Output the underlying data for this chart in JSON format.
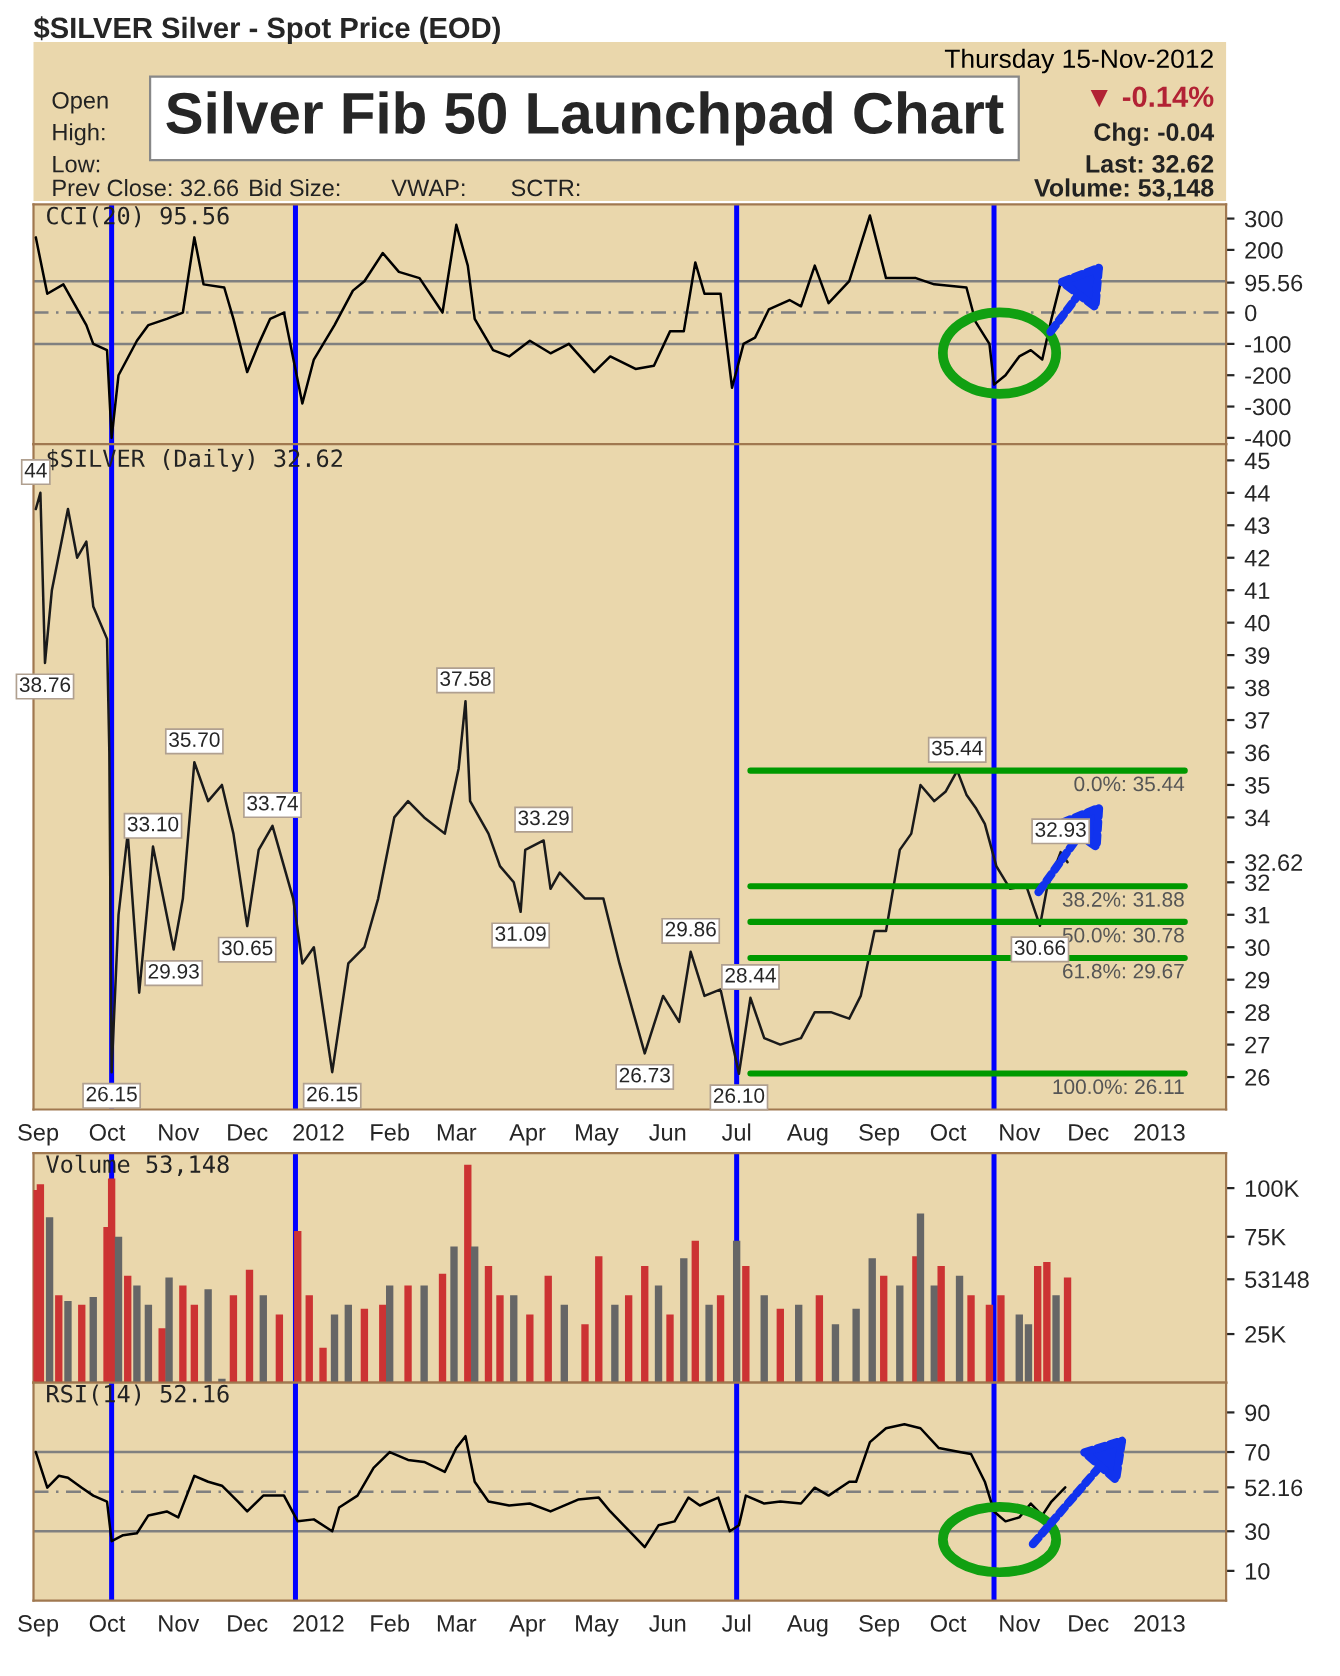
{
  "chart_data": [
    {
      "type": "other",
      "title": "Silver Fib 50 Launchpad Chart",
      "subtitle": "$SILVER Silver - Spot Price (EOD)",
      "annotations": [
        "Thursday 15-Nov-2012",
        "Open",
        "High:",
        "Low:",
        "Prev Close: 32.66",
        "Bid Size:",
        "VWAP:",
        "SCTR:",
        "▼ -0.14%",
        "Chg: -0.04",
        "Last: 32.62",
        "Volume: 53,148"
      ]
    },
    {
      "type": "line",
      "title": "CCI(20) 95.56",
      "tick_labels": "y",
      "xlim": [
        "2011-08-30",
        "2013-01-30"
      ],
      "xticks": [
        {
          "value": "2011-09-01",
          "label": null
        },
        {
          "value": "2011-10-01",
          "label": null
        },
        {
          "value": "2011-11-01",
          "label": null
        },
        {
          "value": "2011-12-01",
          "label": null
        },
        {
          "value": "2012-01-01",
          "label": null
        },
        {
          "value": "2012-02-01",
          "label": null
        },
        {
          "value": "2012-03-01",
          "label": null
        },
        {
          "value": "2012-04-01",
          "label": null
        },
        {
          "value": "2012-05-01",
          "label": null
        },
        {
          "value": "2012-06-01",
          "label": null
        },
        {
          "value": "2012-07-01",
          "label": null
        },
        {
          "value": "2012-08-01",
          "label": null
        },
        {
          "value": "2012-09-01",
          "label": null
        },
        {
          "value": "2012-10-01",
          "label": null
        },
        {
          "value": "2012-11-01",
          "label": null
        },
        {
          "value": "2012-12-01",
          "label": null
        },
        {
          "value": "2013-01-01",
          "label": null
        }
      ],
      "ylim": [
        -420,
        345
      ],
      "yticks": [
        -400,
        -300,
        -200,
        -100,
        0,
        {
          "value": 95.56,
          "label": "95.56"
        },
        200,
        300
      ],
      "series": [
        {
          "color": "#000000",
          "x": [
            "2011-08-31",
            "2011-09-05",
            "2011-09-12",
            "2011-09-22",
            "2011-09-25",
            "2011-10-01",
            "2011-10-03",
            "2011-10-06",
            "2011-10-14",
            "2011-10-19",
            "2011-10-27",
            "2011-11-03",
            "2011-11-08",
            "2011-11-12",
            "2011-11-21",
            "2011-11-25",
            "2011-12-01",
            "2011-12-06",
            "2011-12-11",
            "2011-12-17",
            "2011-12-25",
            "2011-12-30",
            "2012-01-08",
            "2012-01-16",
            "2012-01-21",
            "2012-01-29",
            "2012-02-05",
            "2012-02-14",
            "2012-02-24",
            "2012-03-01",
            "2012-03-06",
            "2012-03-09",
            "2012-03-17",
            "2012-03-24",
            "2012-04-02",
            "2012-04-11",
            "2012-04-19",
            "2012-04-30",
            "2012-05-07",
            "2012-05-18",
            "2012-05-26",
            "2012-06-02",
            "2012-06-08",
            "2012-06-13",
            "2012-06-17",
            "2012-06-24",
            "2012-06-29",
            "2012-07-04",
            "2012-07-09",
            "2012-07-15",
            "2012-07-24",
            "2012-07-29",
            "2012-08-04",
            "2012-08-10",
            "2012-08-19",
            "2012-08-28",
            "2012-09-04",
            "2012-09-17",
            "2012-09-25",
            "2012-10-09",
            "2012-10-13",
            "2012-10-19",
            "2012-10-21",
            "2012-10-26",
            "2012-11-01",
            "2012-11-06",
            "2012-11-11",
            "2012-11-15",
            "2012-11-19"
          ],
          "values": [
            240,
            60,
            90,
            -40,
            -100,
            -120,
            -400,
            -200,
            -90,
            -40,
            -20,
            0,
            240,
            90,
            80,
            -20,
            -190,
            -100,
            -20,
            0,
            -290,
            -150,
            -40,
            70,
            100,
            190,
            130,
            110,
            0,
            280,
            150,
            -20,
            -120,
            -140,
            -90,
            -130,
            -100,
            -190,
            -140,
            -180,
            -170,
            -60,
            -60,
            160,
            60,
            60,
            -240,
            -100,
            -80,
            10,
            40,
            20,
            150,
            30,
            100,
            310,
            110,
            110,
            90,
            80,
            -30,
            -100,
            -230,
            -200,
            -140,
            -120,
            -150,
            -20,
            95.56
          ]
        }
      ],
      "ref_lines": [
        {
          "axis": "y",
          "value": 100,
          "color": "#808080"
        },
        {
          "axis": "y",
          "value": -100,
          "color": "#808080"
        },
        {
          "axis": "y",
          "value": 0,
          "color": "#808080",
          "line_style": "dashed"
        },
        {
          "axis": "x",
          "value": "2011-10-03",
          "color": "#0000ff"
        },
        {
          "axis": "x",
          "value": "2011-12-22",
          "color": "#0000ff"
        },
        {
          "axis": "x",
          "value": "2012-07-01",
          "color": "#0000ff"
        },
        {
          "axis": "x",
          "value": "2012-10-21",
          "color": "#0000ff"
        }
      ]
    },
    {
      "type": "line",
      "title": "$SILVER (Daily) 32.62",
      "xlim": [
        "2011-08-30",
        "2013-01-30"
      ],
      "xticks": [
        {
          "value": "2011-09-01",
          "label": "Sep"
        },
        {
          "value": "2011-10-01",
          "label": "Oct"
        },
        {
          "value": "2011-11-01",
          "label": "Nov"
        },
        {
          "value": "2011-12-01",
          "label": "Dec"
        },
        {
          "value": "2012-01-01",
          "label": "2012"
        },
        {
          "value": "2012-02-01",
          "label": "Feb"
        },
        {
          "value": "2012-03-01",
          "label": "Mar"
        },
        {
          "value": "2012-04-01",
          "label": "Apr"
        },
        {
          "value": "2012-05-01",
          "label": "May"
        },
        {
          "value": "2012-06-01",
          "label": "Jun"
        },
        {
          "value": "2012-07-01",
          "label": "Jul"
        },
        {
          "value": "2012-08-01",
          "label": "Aug"
        },
        {
          "value": "2012-09-01",
          "label": "Sep"
        },
        {
          "value": "2012-10-01",
          "label": "Oct"
        },
        {
          "value": "2012-11-01",
          "label": "Nov"
        },
        {
          "value": "2012-12-01",
          "label": "Dec"
        },
        {
          "value": "2013-01-01",
          "label": "2013"
        }
      ],
      "ylim": [
        25,
        45.5
      ],
      "yticks": [
        26,
        27,
        28,
        29,
        30,
        31,
        32,
        {
          "value": 32.62,
          "label": "32.62"
        },
        34,
        35,
        36,
        37,
        38,
        39,
        40,
        41,
        42,
        43,
        44,
        45
      ],
      "series": [
        {
          "color": "#1a1a1a",
          "x": [
            "2011-08-31",
            "2011-09-02",
            "2011-09-04",
            "2011-09-07",
            "2011-09-14",
            "2011-09-18",
            "2011-09-22",
            "2011-09-25",
            "2011-10-01",
            "2011-10-02",
            "2011-10-03",
            "2011-10-06",
            "2011-10-10",
            "2011-10-15",
            "2011-10-21",
            "2011-10-30",
            "2011-11-03",
            "2011-11-08",
            "2011-11-14",
            "2011-11-20",
            "2011-11-25",
            "2011-12-01",
            "2011-12-06",
            "2011-12-12",
            "2011-12-21",
            "2011-12-25",
            "2011-12-30",
            "2012-01-07",
            "2012-01-14",
            "2012-01-21",
            "2012-01-27",
            "2012-02-03",
            "2012-02-09",
            "2012-02-16",
            "2012-02-25",
            "2012-03-02",
            "2012-03-05",
            "2012-03-07",
            "2012-03-15",
            "2012-03-20",
            "2012-03-26",
            "2012-03-29",
            "2012-03-31",
            "2012-04-08",
            "2012-04-11",
            "2012-04-15",
            "2012-04-26",
            "2012-05-04",
            "2012-05-11",
            "2012-05-22",
            "2012-05-30",
            "2012-06-06",
            "2012-06-11",
            "2012-06-17",
            "2012-06-24",
            "2012-07-02",
            "2012-07-07",
            "2012-07-13",
            "2012-07-20",
            "2012-07-29",
            "2012-08-04",
            "2012-08-11",
            "2012-08-19",
            "2012-08-24",
            "2012-08-30",
            "2012-09-04",
            "2012-09-10",
            "2012-09-15",
            "2012-09-19",
            "2012-09-25",
            "2012-09-30",
            "2012-10-05",
            "2012-10-09",
            "2012-10-13",
            "2012-10-17",
            "2012-10-22",
            "2012-10-28",
            "2012-11-04",
            "2012-11-10",
            "2012-11-13",
            "2012-11-19",
            "2012-11-22"
          ],
          "values": [
            43.5,
            44,
            38.76,
            41,
            43.5,
            42,
            42.5,
            40.5,
            39.5,
            36,
            26.15,
            31,
            33.5,
            28.6,
            33.1,
            29.93,
            31.5,
            35.7,
            34.5,
            35,
            33.5,
            30.65,
            33,
            33.74,
            31.5,
            29.5,
            30,
            26.15,
            29.5,
            30,
            31.5,
            34,
            34.5,
            34,
            33.5,
            35.5,
            37.58,
            34.5,
            33.5,
            32.5,
            32,
            31.09,
            33,
            33.29,
            31.8,
            32.3,
            31.5,
            31.5,
            29.5,
            26.73,
            28.5,
            27.7,
            29.86,
            28.5,
            28.7,
            26.1,
            28.44,
            27.2,
            27,
            27.2,
            28,
            28,
            27.8,
            28.5,
            30.5,
            30.5,
            33,
            33.5,
            35,
            34.5,
            34.8,
            35.44,
            34.7,
            34.3,
            33.8,
            32.5,
            31.8,
            31.9,
            30.66,
            31.8,
            32.93,
            32.62
          ]
        },
        {
          "name": "0.0%: 35.44",
          "color": "#009900",
          "x": [
            "2012-07-07",
            "2013-01-12"
          ],
          "values": [
            35.44,
            35.44
          ]
        },
        {
          "name": "38.2%: 31.88",
          "color": "#009900",
          "x": [
            "2012-07-07",
            "2013-01-12"
          ],
          "values": [
            31.88,
            31.88
          ]
        },
        {
          "name": "50.0%: 30.78",
          "color": "#009900",
          "x": [
            "2012-07-07",
            "2013-01-12"
          ],
          "values": [
            30.78,
            30.78
          ]
        },
        {
          "name": "61.8%: 29.67",
          "color": "#009900",
          "x": [
            "2012-07-07",
            "2013-01-12"
          ],
          "values": [
            29.67,
            29.67
          ]
        },
        {
          "name": "100.0%: 26.11",
          "color": "#009900",
          "x": [
            "2012-07-07",
            "2013-01-12"
          ],
          "values": [
            26.11,
            26.11
          ]
        }
      ],
      "ref_lines": [
        {
          "axis": "x",
          "value": "2011-10-03",
          "color": "#0000ff"
        },
        {
          "axis": "x",
          "value": "2011-12-22",
          "color": "#0000ff"
        },
        {
          "axis": "x",
          "value": "2012-07-01",
          "color": "#0000ff"
        },
        {
          "axis": "x",
          "value": "2012-10-21",
          "color": "#0000ff"
        }
      ],
      "annotations": [
        {
          "text": "44",
          "x": "2011-08-31",
          "y": 44
        },
        {
          "text": "38.76",
          "x": "2011-09-04",
          "y": 38.76
        },
        {
          "text": "26.15",
          "x": "2011-10-03",
          "y": 26.15
        },
        {
          "text": "33.10",
          "x": "2011-10-21",
          "y": 33.1
        },
        {
          "text": "29.93",
          "x": "2011-10-30",
          "y": 29.93
        },
        {
          "text": "35.70",
          "x": "2011-11-08",
          "y": 35.7
        },
        {
          "text": "30.65",
          "x": "2011-12-01",
          "y": 30.65
        },
        {
          "text": "33.74",
          "x": "2011-12-12",
          "y": 33.74
        },
        {
          "text": "26.15",
          "x": "2012-01-07",
          "y": 26.15
        },
        {
          "text": "37.58",
          "x": "2012-03-05",
          "y": 37.58
        },
        {
          "text": "33.29",
          "x": "2012-04-08",
          "y": 33.29
        },
        {
          "text": "31.09",
          "x": "2012-03-29",
          "y": 31.09
        },
        {
          "text": "26.73",
          "x": "2012-05-22",
          "y": 26.73
        },
        {
          "text": "29.86",
          "x": "2012-06-11",
          "y": 29.86
        },
        {
          "text": "26.10",
          "x": "2012-07-02",
          "y": 26.1
        },
        {
          "text": "28.44",
          "x": "2012-07-07",
          "y": 28.44
        },
        {
          "text": "35.44",
          "x": "2012-10-05",
          "y": 35.44
        },
        {
          "text": "30.66",
          "x": "2012-11-10",
          "y": 30.66
        },
        {
          "text": "32.93",
          "x": "2012-11-19",
          "y": 32.93
        }
      ]
    },
    {
      "type": "bar",
      "title": "Volume 53,148",
      "tick_labels": "y",
      "xlim": [
        "2011-08-30",
        "2013-01-30"
      ],
      "xticks": [
        {
          "value": "2011-09-01",
          "label": null
        },
        {
          "value": "2011-10-01",
          "label": null
        },
        {
          "value": "2011-11-01",
          "label": null
        },
        {
          "value": "2011-12-01",
          "label": null
        },
        {
          "value": "2012-01-01",
          "label": null
        },
        {
          "value": "2012-02-01",
          "label": null
        },
        {
          "value": "2012-03-01",
          "label": null
        },
        {
          "value": "2012-04-01",
          "label": null
        },
        {
          "value": "2012-05-01",
          "label": null
        },
        {
          "value": "2012-06-01",
          "label": null
        },
        {
          "value": "2012-07-01",
          "label": null
        },
        {
          "value": "2012-08-01",
          "label": null
        },
        {
          "value": "2012-09-01",
          "label": null
        },
        {
          "value": "2012-10-01",
          "label": null
        },
        {
          "value": "2012-11-01",
          "label": null
        },
        {
          "value": "2012-12-01",
          "label": null
        },
        {
          "value": "2013-01-01",
          "label": null
        }
      ],
      "ylim": [
        0,
        118000
      ],
      "yticks": [
        {
          "value": 25000,
          "label": "25K"
        },
        {
          "value": 53148,
          "label": "53148"
        },
        {
          "value": 75000,
          "label": "75K"
        },
        {
          "value": 100000,
          "label": "100K"
        }
      ],
      "x": [
        "2011-08-31",
        "2011-09-02",
        "2011-09-06",
        "2011-09-10",
        "2011-09-14",
        "2011-09-20",
        "2011-09-25",
        "2011-10-01",
        "2011-10-03",
        "2011-10-06",
        "2011-10-10",
        "2011-10-14",
        "2011-10-19",
        "2011-10-25",
        "2011-10-28",
        "2011-11-03",
        "2011-11-08",
        "2011-11-14",
        "2011-11-20",
        "2011-11-25",
        "2011-12-02",
        "2011-12-08",
        "2011-12-15",
        "2011-12-23",
        "2011-12-28",
        "2012-01-03",
        "2012-01-08",
        "2012-01-14",
        "2012-01-21",
        "2012-01-29",
        "2012-02-01",
        "2012-02-09",
        "2012-02-16",
        "2012-02-24",
        "2012-02-29",
        "2012-03-06",
        "2012-03-09",
        "2012-03-15",
        "2012-03-20",
        "2012-03-26",
        "2012-04-02",
        "2012-04-10",
        "2012-04-17",
        "2012-04-26",
        "2012-05-02",
        "2012-05-09",
        "2012-05-15",
        "2012-05-22",
        "2012-05-28",
        "2012-06-02",
        "2012-06-08",
        "2012-06-13",
        "2012-06-19",
        "2012-06-24",
        "2012-07-01",
        "2012-07-05",
        "2012-07-13",
        "2012-07-20",
        "2012-07-28",
        "2012-08-06",
        "2012-08-13",
        "2012-08-22",
        "2012-08-29",
        "2012-09-03",
        "2012-09-10",
        "2012-09-17",
        "2012-09-19",
        "2012-09-25",
        "2012-09-28",
        "2012-10-06",
        "2012-10-11",
        "2012-10-19",
        "2012-10-24",
        "2012-11-01",
        "2012-11-05",
        "2012-11-09",
        "2012-11-13",
        "2012-11-17",
        "2012-11-22"
      ],
      "values": [
        99000,
        102000,
        85000,
        45000,
        42000,
        40000,
        44000,
        80000,
        105000,
        75000,
        55000,
        50000,
        40000,
        28000,
        54000,
        50000,
        40000,
        48000,
        2000,
        45000,
        58000,
        45000,
        35000,
        78000,
        45000,
        18000,
        35000,
        40000,
        38000,
        40000,
        50000,
        50000,
        50000,
        56000,
        70000,
        112000,
        70000,
        60000,
        45000,
        45000,
        35000,
        55000,
        40000,
        30000,
        65000,
        40000,
        45000,
        60000,
        50000,
        35000,
        64000,
        73000,
        40000,
        45000,
        73000,
        60000,
        45000,
        38000,
        40000,
        45000,
        30000,
        38000,
        64000,
        55000,
        50000,
        65000,
        87000,
        50000,
        60000,
        55000,
        45000,
        40000,
        45000,
        35000,
        30000,
        60000,
        62000,
        45000,
        54000
      ],
      "colors": [
        "#cc3333",
        "#cc3333",
        "#666666",
        "#cc3333",
        "#666666",
        "#cc3333",
        "#666666",
        "#cc3333",
        "#cc3333",
        "#666666",
        "#cc3333",
        "#666666",
        "#666666",
        "#cc3333",
        "#666666",
        "#cc3333",
        "#cc3333",
        "#666666",
        "#666666",
        "#cc3333",
        "#cc3333",
        "#666666",
        "#cc3333",
        "#cc3333",
        "#cc3333",
        "#cc3333",
        "#666666",
        "#666666",
        "#cc3333",
        "#cc3333",
        "#666666",
        "#cc3333",
        "#666666",
        "#cc3333",
        "#666666",
        "#cc3333",
        "#666666",
        "#cc3333",
        "#cc3333",
        "#666666",
        "#cc3333",
        "#cc3333",
        "#666666",
        "#cc3333",
        "#cc3333",
        "#666666",
        "#cc3333",
        "#cc3333",
        "#666666",
        "#cc3333",
        "#666666",
        "#cc3333",
        "#666666",
        "#cc3333",
        "#666666",
        "#cc3333",
        "#666666",
        "#cc3333",
        "#666666",
        "#cc3333",
        "#666666",
        "#666666",
        "#666666",
        "#cc3333",
        "#666666",
        "#cc3333",
        "#666666",
        "#666666",
        "#cc3333",
        "#666666",
        "#cc3333",
        "#cc3333",
        "#cc3333",
        "#666666",
        "#666666",
        "#cc3333",
        "#cc3333",
        "#666666",
        "#cc3333"
      ],
      "ref_lines": [
        {
          "axis": "x",
          "value": "2011-10-03",
          "color": "#0000ff"
        },
        {
          "axis": "x",
          "value": "2011-12-22",
          "color": "#0000ff"
        },
        {
          "axis": "x",
          "value": "2012-07-01",
          "color": "#0000ff"
        },
        {
          "axis": "x",
          "value": "2012-10-21",
          "color": "#0000ff"
        }
      ]
    },
    {
      "type": "line",
      "title": "RSI(14) 52.16",
      "xlim": [
        "2011-08-30",
        "2013-01-30"
      ],
      "xticks": [
        {
          "value": "2011-09-01",
          "label": "Sep"
        },
        {
          "value": "2011-10-01",
          "label": "Oct"
        },
        {
          "value": "2011-11-01",
          "label": "Nov"
        },
        {
          "value": "2011-12-01",
          "label": "Dec"
        },
        {
          "value": "2012-01-01",
          "label": "2012"
        },
        {
          "value": "2012-02-01",
          "label": "Feb"
        },
        {
          "value": "2012-03-01",
          "label": "Mar"
        },
        {
          "value": "2012-04-01",
          "label": "Apr"
        },
        {
          "value": "2012-05-01",
          "label": "May"
        },
        {
          "value": "2012-06-01",
          "label": "Jun"
        },
        {
          "value": "2012-07-01",
          "label": "Jul"
        },
        {
          "value": "2012-08-01",
          "label": "Aug"
        },
        {
          "value": "2012-09-01",
          "label": "Sep"
        },
        {
          "value": "2012-10-01",
          "label": "Oct"
        },
        {
          "value": "2012-11-01",
          "label": "Nov"
        },
        {
          "value": "2012-12-01",
          "label": "Dec"
        },
        {
          "value": "2013-01-01",
          "label": "2013"
        }
      ],
      "ylim": [
        -5,
        105
      ],
      "yticks": [
        10,
        30,
        {
          "value": 52.16,
          "label": "52.16"
        },
        70,
        90
      ],
      "series": [
        {
          "color": "#000000",
          "x": [
            "2011-08-31",
            "2011-09-05",
            "2011-09-10",
            "2011-09-14",
            "2011-09-20",
            "2011-09-25",
            "2011-10-01",
            "2011-10-03",
            "2011-10-08",
            "2011-10-14",
            "2011-10-19",
            "2011-10-27",
            "2011-11-01",
            "2011-11-08",
            "2011-11-14",
            "2011-11-20",
            "2011-11-27",
            "2011-12-01",
            "2011-12-08",
            "2011-12-17",
            "2011-12-23",
            "2011-12-30",
            "2012-01-07",
            "2012-01-10",
            "2012-01-18",
            "2012-01-25",
            "2012-02-01",
            "2012-02-09",
            "2012-02-16",
            "2012-02-25",
            "2012-03-01",
            "2012-03-05",
            "2012-03-09",
            "2012-03-15",
            "2012-03-24",
            "2012-04-02",
            "2012-04-11",
            "2012-04-23",
            "2012-05-02",
            "2012-05-07",
            "2012-05-17",
            "2012-05-22",
            "2012-05-28",
            "2012-06-04",
            "2012-06-10",
            "2012-06-15",
            "2012-06-23",
            "2012-06-28",
            "2012-07-02",
            "2012-07-05",
            "2012-07-13",
            "2012-07-20",
            "2012-07-29",
            "2012-08-04",
            "2012-08-10",
            "2012-08-19",
            "2012-08-22",
            "2012-08-28",
            "2012-09-04",
            "2012-09-12",
            "2012-09-19",
            "2012-09-27",
            "2012-10-06",
            "2012-10-11",
            "2012-10-17",
            "2012-10-21",
            "2012-10-26",
            "2012-11-01",
            "2012-11-06",
            "2012-11-11",
            "2012-11-15",
            "2012-11-21"
          ],
          "values": [
            70,
            52,
            58,
            57,
            52,
            48,
            45,
            25,
            28,
            29,
            38,
            40,
            37,
            58,
            55,
            53,
            45,
            40,
            48,
            48,
            35,
            36,
            30,
            42,
            48,
            62,
            70,
            66,
            65,
            60,
            72,
            78,
            55,
            45,
            43,
            44,
            40,
            46,
            47,
            40,
            28,
            22,
            33,
            35,
            47,
            43,
            47,
            30,
            33,
            48,
            44,
            45,
            44,
            52,
            48,
            55,
            55,
            75,
            82,
            84,
            82,
            72,
            70,
            69,
            55,
            40,
            35,
            37,
            44,
            38,
            45,
            52.16
          ]
        }
      ],
      "ref_lines": [
        {
          "axis": "y",
          "value": 70,
          "color": "#808080"
        },
        {
          "axis": "y",
          "value": 30,
          "color": "#808080"
        },
        {
          "axis": "y",
          "value": 50,
          "color": "#808080",
          "line_style": "dashed"
        },
        {
          "axis": "x",
          "value": "2011-10-03",
          "color": "#0000ff"
        },
        {
          "axis": "x",
          "value": "2011-12-22",
          "color": "#0000ff"
        },
        {
          "axis": "x",
          "value": "2012-07-01",
          "color": "#0000ff"
        },
        {
          "axis": "x",
          "value": "2012-10-21",
          "color": "#0000ff"
        }
      ]
    }
  ]
}
